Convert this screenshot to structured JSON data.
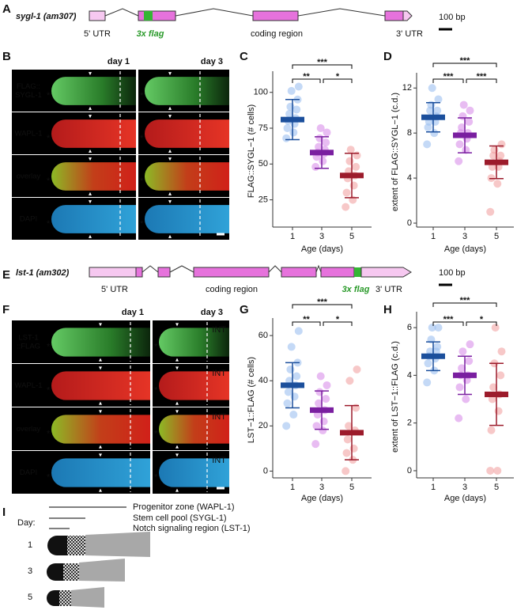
{
  "panel_labels": [
    "A",
    "B",
    "C",
    "D",
    "E",
    "F",
    "G",
    "H",
    "I"
  ],
  "gene_a": {
    "name": "sygl-1 (am307)",
    "utr5": "5' UTR",
    "tag": "3x flag",
    "coding": "coding region",
    "utr3": "3' UTR",
    "scale": "100 bp"
  },
  "gene_e": {
    "name": "lst-1 (am302)",
    "utr5": "5' UTR",
    "coding": "coding region",
    "tag": "3x flag",
    "utr3": "3' UTR",
    "scale": "100 bp"
  },
  "image_b": {
    "columns": [
      "day 1",
      "day 3"
    ],
    "rows": [
      [
        "FLAG::",
        "SYGL-1"
      ],
      [
        "WAPL-1"
      ],
      [
        "overlay"
      ],
      [
        "DAPI"
      ]
    ],
    "marker": "*"
  },
  "image_f": {
    "columns": [
      "day 1",
      "day 3"
    ],
    "rows": [
      [
        "LST-1",
        "::FLAG"
      ],
      [
        "WAPL-1"
      ],
      [
        "overlay"
      ],
      [
        "DAPI"
      ]
    ],
    "marker": "*",
    "int_label": "INT"
  },
  "schematic_i": {
    "legend": [
      "Progenitor zone (WAPL-1)",
      "Stem cell pool (SYGL-1)",
      "Notch signaling region (LST-1)"
    ],
    "day_label": "Day:",
    "days": [
      "1",
      "3",
      "5"
    ]
  },
  "chart_data": [
    {
      "type": "dotplot",
      "y_label": "FLAG::SYGL−1 (# cells)",
      "x_label": "Age (days)",
      "categories": [
        "1",
        "3",
        "5"
      ],
      "ylim": [
        6,
        112
      ],
      "yticks": [
        25,
        50,
        75,
        100
      ],
      "points": [
        [
          68,
          72,
          75,
          78,
          80,
          82,
          85,
          88,
          90,
          95,
          101,
          104
        ],
        [
          48,
          52,
          55,
          57,
          58,
          60,
          62,
          65,
          68,
          72,
          75
        ],
        [
          20,
          25,
          30,
          35,
          40,
          42,
          45,
          48,
          52,
          56,
          60
        ]
      ],
      "means": [
        81,
        58,
        42
      ],
      "sd": [
        14,
        11,
        15.5
      ],
      "colors": [
        "#1b4f9c",
        "#7a1fa0",
        "#9c1b2b"
      ],
      "point_colors": [
        "#9cc0f0",
        "#d890ea",
        "#f2a3a3"
      ],
      "significance": [
        "***",
        "**",
        "*"
      ]
    },
    {
      "type": "dotplot",
      "y_label": "extent of FLAG::SYGL−1 (c.d.)",
      "x_label": "Age (days)",
      "categories": [
        "1",
        "3",
        "5"
      ],
      "ylim": [
        -0.35,
        13
      ],
      "yticks": [
        0,
        4,
        8,
        12
      ],
      "points": [
        [
          7,
          8,
          8.5,
          9,
          9,
          9.5,
          10,
          10,
          10.5,
          11,
          12
        ],
        [
          5.5,
          6.5,
          7,
          7.5,
          8,
          8,
          8.5,
          9,
          9.5,
          10,
          10.5
        ],
        [
          1,
          3.5,
          4,
          5,
          5,
          5.5,
          6,
          6,
          6.5,
          7
        ]
      ],
      "means": [
        9.4,
        7.8,
        5.4
      ],
      "sd": [
        1.3,
        1.55,
        1.45
      ],
      "colors": [
        "#1b4f9c",
        "#7a1fa0",
        "#9c1b2b"
      ],
      "point_colors": [
        "#9cc0f0",
        "#d890ea",
        "#f2a3a3"
      ],
      "significance": [
        "***",
        "***",
        "***"
      ]
    },
    {
      "type": "dotplot",
      "y_label": "LST−1::FLAG (# cells)",
      "x_label": "Age (days)",
      "categories": [
        "1",
        "3",
        "5"
      ],
      "ylim": [
        -3,
        66
      ],
      "yticks": [
        0,
        20,
        40,
        60
      ],
      "points": [
        [
          20,
          25,
          30,
          33,
          35,
          38,
          40,
          42,
          45,
          48,
          55,
          62
        ],
        [
          12,
          18,
          20,
          22,
          25,
          27,
          30,
          32,
          35,
          38,
          42
        ],
        [
          0,
          5,
          8,
          10,
          14,
          18,
          20,
          28,
          40,
          45
        ]
      ],
      "means": [
        38,
        27,
        17
      ],
      "sd": [
        10,
        8.5,
        12
      ],
      "colors": [
        "#1b4f9c",
        "#7a1fa0",
        "#9c1b2b"
      ],
      "point_colors": [
        "#9cc0f0",
        "#d890ea",
        "#f2a3a3"
      ],
      "significance": [
        "***",
        "**",
        "*"
      ]
    },
    {
      "type": "dotplot",
      "y_label": "extent of LST−1::FLAG (c.d.)",
      "x_label": "Age (days)",
      "categories": [
        "1",
        "3",
        "5"
      ],
      "ylim": [
        -0.3,
        6.5
      ],
      "yticks": [
        0,
        2,
        4,
        6
      ],
      "points": [
        [
          3.7,
          4.2,
          4.5,
          4.7,
          4.8,
          5,
          5,
          5.2,
          5.5,
          6,
          6
        ],
        [
          2.2,
          3,
          3.5,
          3.8,
          4,
          4,
          4.3,
          4.6,
          5,
          5.3
        ],
        [
          0,
          0,
          1.7,
          2.5,
          3,
          3.2,
          3.5,
          4,
          4.5,
          5,
          6
        ]
      ],
      "means": [
        4.8,
        4.0,
        3.2
      ],
      "sd": [
        0.6,
        0.8,
        1.3
      ],
      "colors": [
        "#1b4f9c",
        "#7a1fa0",
        "#9c1b2b"
      ],
      "point_colors": [
        "#9cc0f0",
        "#d890ea",
        "#f2a3a3"
      ],
      "significance": [
        "***",
        "***",
        "*"
      ]
    }
  ]
}
